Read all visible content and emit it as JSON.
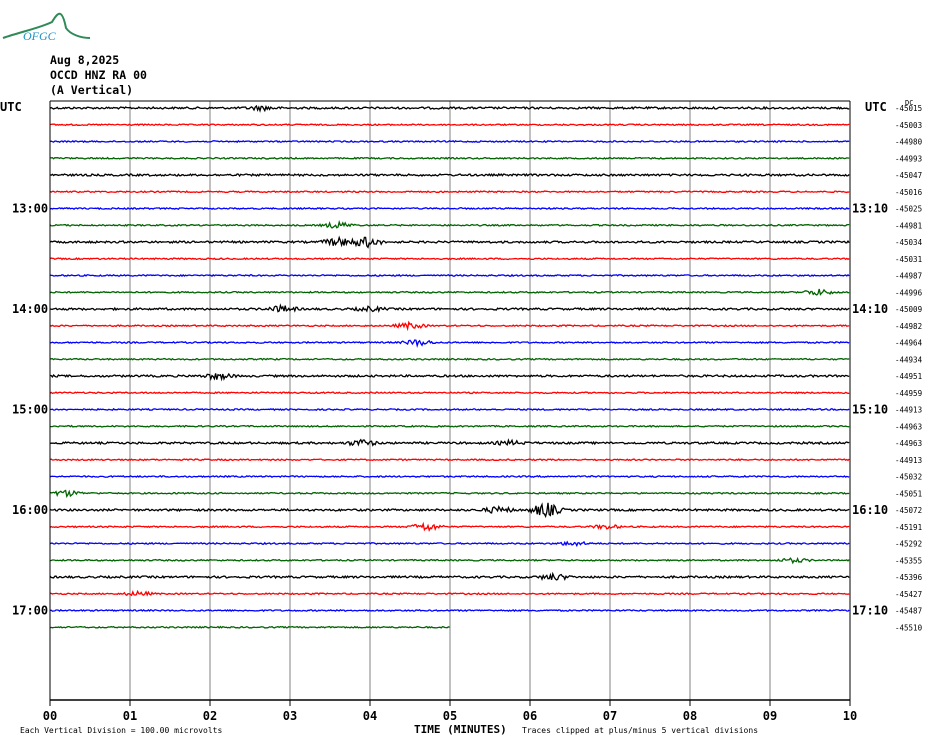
{
  "header": {
    "date": "Aug 8,2025",
    "station": "OCCD HNZ RA 00",
    "component": "(A Vertical)",
    "logo_text": "OFGC"
  },
  "left_time_label": "UTC",
  "right_time_label": "UTC",
  "dc_label": "DC",
  "footer": {
    "scale_text": "Each Vertical Division =  100.00 microvolts",
    "x_title": "TIME (MINUTES)",
    "clip_note": "Traces clipped at plus/minus 5 vertical divisions"
  },
  "colors": {
    "trace_cycle": [
      "#000000",
      "#ff0000",
      "#0000ff",
      "#006400"
    ],
    "grid": "#808080",
    "axes": "#000000"
  },
  "chart_data": {
    "type": "line",
    "title": "",
    "xlabel": "TIME (MINUTES)",
    "ylabel": "",
    "xlim": [
      0,
      10
    ],
    "x_ticks": [
      "00",
      "01",
      "02",
      "03",
      "04",
      "05",
      "06",
      "07",
      "08",
      "09",
      "10"
    ],
    "row_interval_minutes": 10,
    "left_hour_labels": [
      "13:00",
      "14:00",
      "15:00",
      "16:00",
      "17:00"
    ],
    "right_hour_labels": [
      "13:10",
      "14:10",
      "15:10",
      "16:10",
      "17:10"
    ],
    "hour_label_rows": [
      6,
      12,
      18,
      24,
      30
    ],
    "dc_offsets": [
      "-45015",
      "-45003",
      "-44980",
      "-44993",
      "-45047",
      "-45016",
      "-45025",
      "-44981",
      "-45034",
      "-45031",
      "-44987",
      "-44996",
      "-45009",
      "-44982",
      "-44964",
      "-44934",
      "-44951",
      "-44959",
      "-44913",
      "-44963",
      "-44963",
      "-44913",
      "-45032",
      "-45051",
      "-45072",
      "-45191",
      "-45292",
      "-45355",
      "-45396",
      "-45427",
      "-45487",
      "-45510"
    ],
    "partial_last_row_minutes": 5,
    "events": [
      {
        "row": 0,
        "minute": 2.65,
        "amp": 2
      },
      {
        "row": 7,
        "minute": 3.6,
        "amp": 3
      },
      {
        "row": 8,
        "minute": 3.6,
        "amp": 4
      },
      {
        "row": 8,
        "minute": 3.95,
        "amp": 5
      },
      {
        "row": 11,
        "minute": 9.6,
        "amp": 3
      },
      {
        "row": 12,
        "minute": 2.9,
        "amp": 3
      },
      {
        "row": 12,
        "minute": 4.0,
        "amp": 2
      },
      {
        "row": 13,
        "minute": 4.5,
        "amp": 3
      },
      {
        "row": 14,
        "minute": 4.6,
        "amp": 3
      },
      {
        "row": 16,
        "minute": 2.1,
        "amp": 3
      },
      {
        "row": 20,
        "minute": 3.9,
        "amp": 3
      },
      {
        "row": 20,
        "minute": 5.75,
        "amp": 2
      },
      {
        "row": 23,
        "minute": 0.2,
        "amp": 3
      },
      {
        "row": 24,
        "minute": 5.6,
        "amp": 3
      },
      {
        "row": 24,
        "minute": 6.2,
        "amp": 7
      },
      {
        "row": 25,
        "minute": 4.7,
        "amp": 4
      },
      {
        "row": 25,
        "minute": 6.95,
        "amp": 2
      },
      {
        "row": 26,
        "minute": 6.55,
        "amp": 2
      },
      {
        "row": 27,
        "minute": 9.3,
        "amp": 2
      },
      {
        "row": 28,
        "minute": 6.3,
        "amp": 3
      },
      {
        "row": 29,
        "minute": 1.1,
        "amp": 2
      }
    ]
  }
}
